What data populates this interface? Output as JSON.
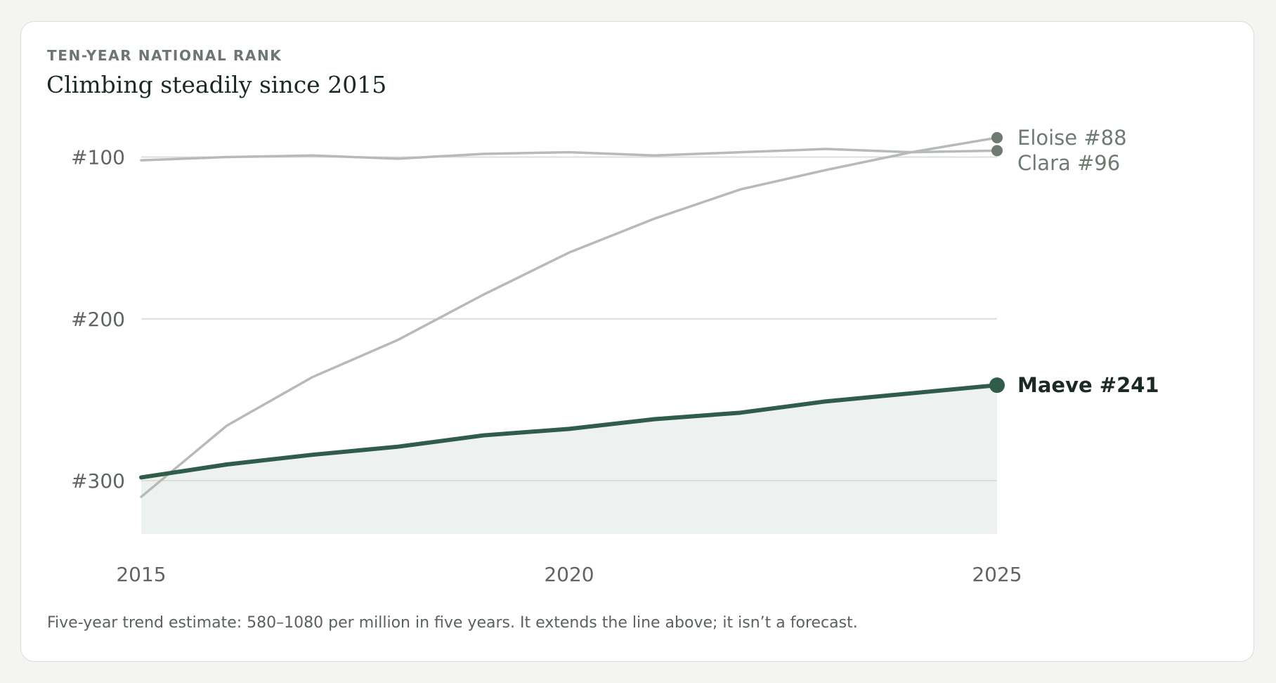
{
  "header": {
    "eyebrow": "TEN-YEAR NATIONAL RANK",
    "title": "Climbing steadily since 2015"
  },
  "footnote": "Five-year trend estimate: 580–1080 per million in five years. It extends the line above; it isn’t a forecast.",
  "colors": {
    "background": "#f4f4f2",
    "card": "#ffffff",
    "highlight": "#2f5d4a",
    "highlight_fill": "#edf1ef",
    "comparison": "#b7bbb7",
    "comparison_marker": "#6f7a73",
    "gridline": "#dcdedc",
    "axis_text": "#5f6661",
    "label_text": "#6f7a73",
    "highlight_label": "#1b2a22"
  },
  "chart_data": {
    "type": "line",
    "x": [
      2015,
      2016,
      2017,
      2018,
      2019,
      2020,
      2021,
      2022,
      2023,
      2024,
      2025
    ],
    "xticks": [
      2015,
      2020,
      2025
    ],
    "xtick_labels": [
      "2015",
      "2020",
      "2025"
    ],
    "ylim": [
      333,
      75
    ],
    "y_inverted": true,
    "yticks": [
      100,
      200,
      300
    ],
    "ytick_labels": [
      "#100",
      "#200",
      "#300"
    ],
    "grid": true,
    "series": [
      {
        "name": "Clara",
        "label": "Clara #96",
        "values": [
          102,
          100,
          99,
          101,
          98,
          97,
          99,
          97,
          95,
          97,
          96
        ],
        "highlight": false
      },
      {
        "name": "Eloise",
        "label": "Eloise #88",
        "values": [
          310,
          266,
          236,
          213,
          185,
          159,
          138,
          120,
          108,
          97,
          88
        ],
        "highlight": false
      },
      {
        "name": "Maeve",
        "label": "Maeve #241",
        "values": [
          298,
          290,
          284,
          279,
          272,
          268,
          262,
          258,
          251,
          246,
          241
        ],
        "highlight": true
      }
    ]
  }
}
